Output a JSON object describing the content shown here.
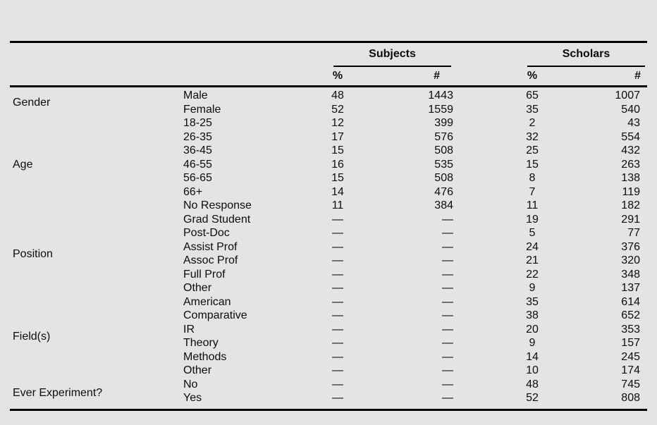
{
  "colors": {
    "background": "#e4e4e4",
    "rule": "#000000",
    "text": "#0c0c0c"
  },
  "table": {
    "header": {
      "subjects_label": "Subjects",
      "scholars_label": "Scholars",
      "pct_label": "%",
      "count_label": "#"
    },
    "groups": [
      {
        "category": "Gender",
        "rows": [
          {
            "label": "Male",
            "s_pct": "48",
            "s_num": "1443",
            "c_pct": "65",
            "c_num": "1007"
          },
          {
            "label": "Female",
            "s_pct": "52",
            "s_num": "1559",
            "c_pct": "35",
            "c_num": "540"
          }
        ]
      },
      {
        "category": "Age",
        "rows": [
          {
            "label": "18-25",
            "s_pct": "12",
            "s_num": "399",
            "c_pct": "2",
            "c_num": "43"
          },
          {
            "label": "26-35",
            "s_pct": "17",
            "s_num": "576",
            "c_pct": "32",
            "c_num": "554"
          },
          {
            "label": "36-45",
            "s_pct": "15",
            "s_num": "508",
            "c_pct": "25",
            "c_num": "432"
          },
          {
            "label": "46-55",
            "s_pct": "16",
            "s_num": "535",
            "c_pct": "15",
            "c_num": "263"
          },
          {
            "label": "56-65",
            "s_pct": "15",
            "s_num": "508",
            "c_pct": "8",
            "c_num": "138"
          },
          {
            "label": "66+",
            "s_pct": "14",
            "s_num": "476",
            "c_pct": "7",
            "c_num": "119"
          },
          {
            "label": "No Response",
            "s_pct": "11",
            "s_num": "384",
            "c_pct": "11",
            "c_num": "182"
          }
        ]
      },
      {
        "category": "Position",
        "rows": [
          {
            "label": "Grad Student",
            "s_pct": "—",
            "s_num": "—",
            "c_pct": "19",
            "c_num": "291"
          },
          {
            "label": "Post-Doc",
            "s_pct": "—",
            "s_num": "—",
            "c_pct": "5",
            "c_num": "77"
          },
          {
            "label": "Assist Prof",
            "s_pct": "—",
            "s_num": "—",
            "c_pct": "24",
            "c_num": "376"
          },
          {
            "label": "Assoc Prof",
            "s_pct": "—",
            "s_num": "—",
            "c_pct": "21",
            "c_num": "320"
          },
          {
            "label": "Full Prof",
            "s_pct": "—",
            "s_num": "—",
            "c_pct": "22",
            "c_num": "348"
          },
          {
            "label": "Other",
            "s_pct": "—",
            "s_num": "—",
            "c_pct": "9",
            "c_num": "137"
          }
        ]
      },
      {
        "category": "Field(s)",
        "rows": [
          {
            "label": "American",
            "s_pct": "—",
            "s_num": "—",
            "c_pct": "35",
            "c_num": "614"
          },
          {
            "label": "Comparative",
            "s_pct": "—",
            "s_num": "—",
            "c_pct": "38",
            "c_num": "652"
          },
          {
            "label": "IR",
            "s_pct": "—",
            "s_num": "—",
            "c_pct": "20",
            "c_num": "353"
          },
          {
            "label": "Theory",
            "s_pct": "—",
            "s_num": "—",
            "c_pct": "9",
            "c_num": "157"
          },
          {
            "label": "Methods",
            "s_pct": "—",
            "s_num": "—",
            "c_pct": "14",
            "c_num": "245"
          },
          {
            "label": "Other",
            "s_pct": "—",
            "s_num": "—",
            "c_pct": "10",
            "c_num": "174"
          }
        ]
      },
      {
        "category": "Ever Experiment?",
        "rows": [
          {
            "label": "No",
            "s_pct": "—",
            "s_num": "—",
            "c_pct": "48",
            "c_num": "745"
          },
          {
            "label": "Yes",
            "s_pct": "—",
            "s_num": "—",
            "c_pct": "52",
            "c_num": "808"
          }
        ]
      }
    ]
  }
}
